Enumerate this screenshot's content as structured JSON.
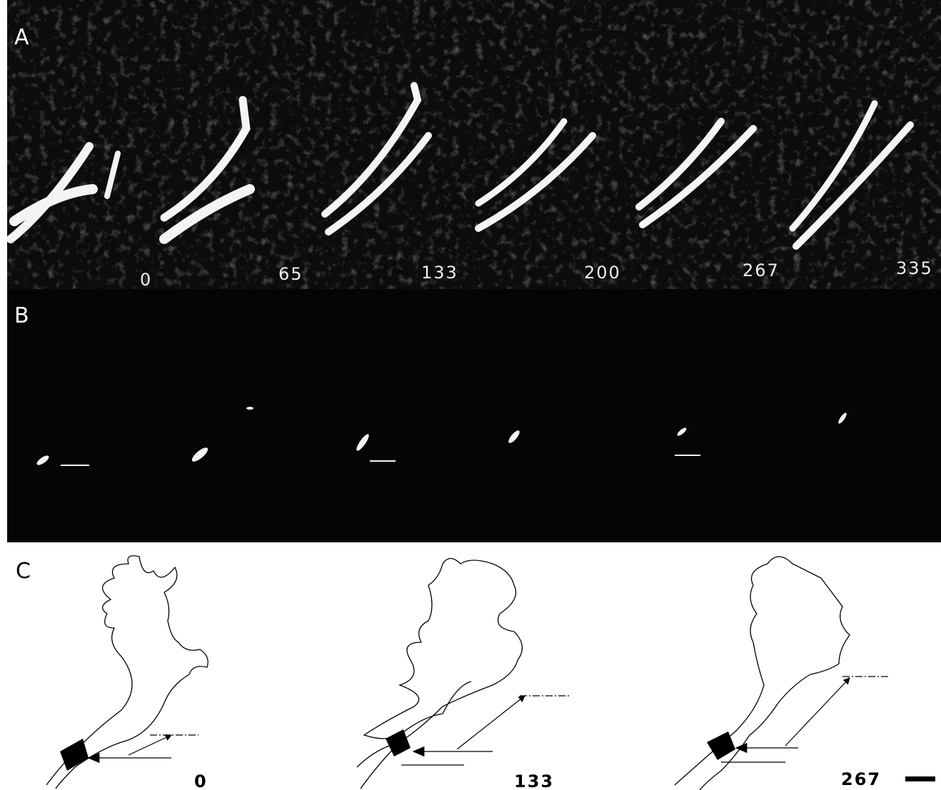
{
  "panels": [
    {
      "label": "A",
      "time_labels": [
        0,
        65,
        133,
        200,
        267,
        335
      ]
    },
    {
      "label": "B"
    },
    {
      "label": "C",
      "time_labels": [
        0,
        133,
        267
      ]
    }
  ]
}
